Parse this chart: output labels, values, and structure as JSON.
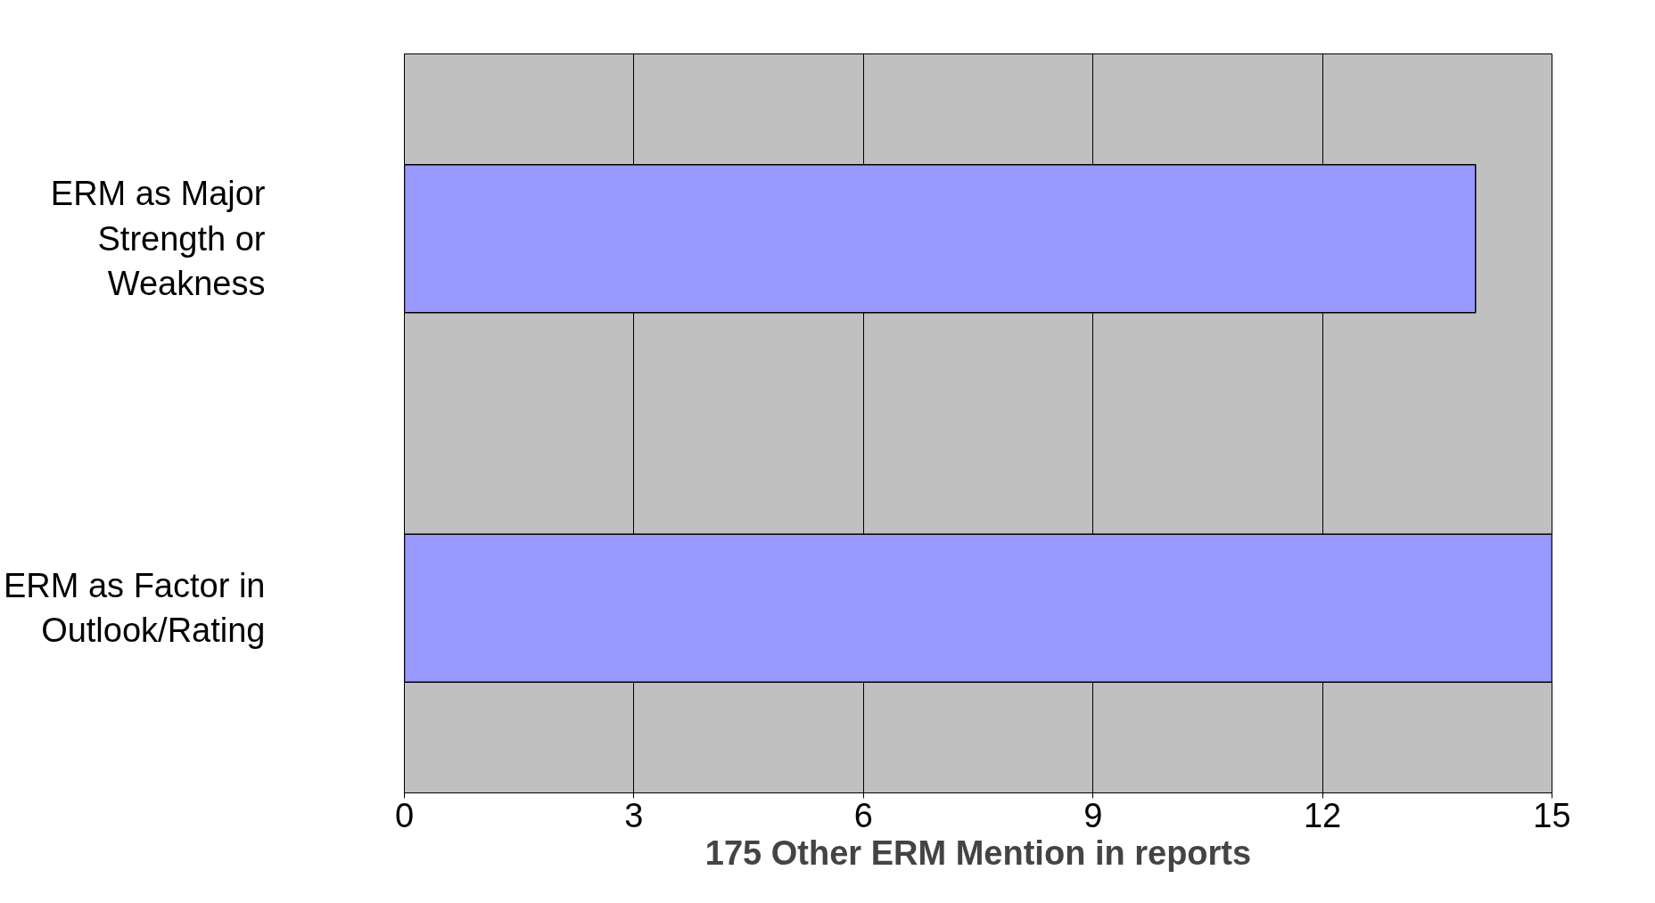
{
  "chart_data": {
    "type": "bar",
    "orientation": "horizontal",
    "xlabel": "175 Other ERM Mention in reports",
    "categories": [
      "ERM as Major Strength or Weakness",
      "ERM as Factor in Outlook/Rating"
    ],
    "values": [
      14,
      15
    ],
    "color": "#9999ff",
    "xlim": [
      0,
      15
    ],
    "xticks": [
      0,
      3,
      6,
      9,
      12,
      15
    ],
    "grid": "x"
  }
}
